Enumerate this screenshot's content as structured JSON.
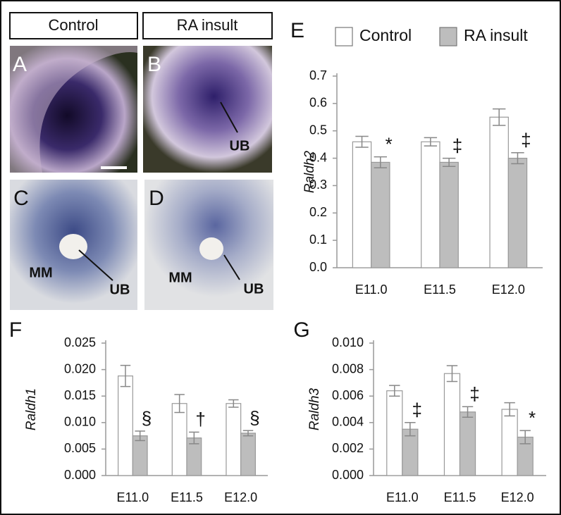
{
  "figure_panels": {
    "headers": [
      "Control",
      "RA insult"
    ],
    "images": [
      {
        "label": "A"
      },
      {
        "label": "B",
        "annotations": [
          "UB"
        ]
      },
      {
        "label": "C",
        "annotations": [
          "MM",
          "UB"
        ]
      },
      {
        "label": "D",
        "annotations": [
          "MM",
          "UB"
        ]
      }
    ]
  },
  "chart_data": [
    {
      "type": "bar",
      "panel_label": "E",
      "y_label": "Raldh2",
      "categories": [
        "E11.0",
        "E11.5",
        "E12.0"
      ],
      "series": [
        {
          "name": "Control",
          "color": "#ffffff",
          "values": [
            0.46,
            0.46,
            0.55
          ],
          "errors": [
            0.02,
            0.015,
            0.03
          ]
        },
        {
          "name": "RA insult",
          "color": "#bdbdbd",
          "values": [
            0.385,
            0.385,
            0.4
          ],
          "errors": [
            0.02,
            0.015,
            0.02
          ]
        }
      ],
      "significance": [
        "*",
        "‡",
        "‡"
      ],
      "ylim": [
        0,
        0.7
      ],
      "yticks": [
        {
          "value": 0,
          "label": "0.0"
        },
        0.1,
        0.2,
        0.3,
        0.4,
        0.5,
        0.6,
        0.7
      ],
      "legend": "top"
    },
    {
      "type": "bar",
      "panel_label": "F",
      "y_label": "Raldh1",
      "categories": [
        "E11.0",
        "E11.5",
        "E12.0"
      ],
      "series": [
        {
          "color": "#ffffff",
          "values": [
            0.0188,
            0.0136,
            0.0136
          ],
          "errors": [
            0.002,
            0.0017,
            0.0007
          ]
        },
        {
          "color": "#bdbdbd",
          "values": [
            0.0075,
            0.0071,
            0.008
          ],
          "errors": [
            0.0009,
            0.0011,
            0.0005
          ]
        }
      ],
      "significance": [
        "§",
        "†",
        "§"
      ],
      "ylim": [
        0,
        0.025
      ],
      "yticks": [
        {
          "value": 0,
          "label": "0.000"
        },
        0.005,
        {
          "value": 0.01,
          "label": "0.010"
        },
        0.015,
        {
          "value": 0.02,
          "label": "0.020"
        },
        0.025
      ]
    },
    {
      "type": "bar",
      "panel_label": "G",
      "y_label": "Raldh3",
      "categories": [
        "E11.0",
        "E11.5",
        "E12.0"
      ],
      "series": [
        {
          "color": "#ffffff",
          "values": [
            0.0064,
            0.0077,
            0.005
          ],
          "errors": [
            0.0004,
            0.0006,
            0.0005
          ]
        },
        {
          "color": "#bdbdbd",
          "values": [
            0.0035,
            0.0048,
            0.0029
          ],
          "errors": [
            0.0005,
            0.0004,
            0.0005
          ]
        }
      ],
      "significance": [
        "‡",
        "‡",
        "*"
      ],
      "ylim": [
        0,
        0.01
      ],
      "yticks": [
        {
          "value": 0,
          "label": "0.000"
        },
        0.002,
        0.004,
        0.006,
        0.008,
        {
          "value": 0.01,
          "label": "0.010"
        }
      ]
    }
  ]
}
